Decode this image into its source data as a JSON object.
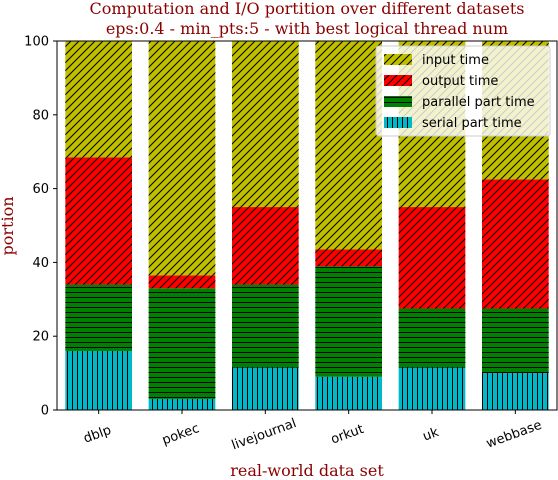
{
  "chart_data": {
    "type": "bar",
    "stacked": true,
    "title": "Computation and I/O portition over different datasets",
    "subtitle": "eps:0.4 - min_pts:5 - with best logical thread num",
    "xlabel": "real-world data set",
    "ylabel": "portion",
    "ylim": [
      0,
      100
    ],
    "yticks": [
      "0",
      "20",
      "40",
      "60",
      "80",
      "100"
    ],
    "categories": [
      "dblp",
      "pokec",
      "livejournal",
      "orkut",
      "uk",
      "webbase"
    ],
    "legend_position": "top-right",
    "series": [
      {
        "name": "serial part time",
        "color": "#00b8c8",
        "hatch": "vertical",
        "values": [
          16.0,
          3.0,
          11.5,
          9.0,
          11.5,
          10.0
        ]
      },
      {
        "name": "parallel part time",
        "color": "#008000",
        "hatch": "horizontal",
        "values": [
          18.0,
          30.0,
          22.5,
          30.0,
          16.0,
          17.5
        ]
      },
      {
        "name": "output time",
        "color": "#ff0000",
        "hatch": "diagonal",
        "values": [
          34.5,
          3.5,
          21.0,
          4.5,
          27.5,
          35.0
        ]
      },
      {
        "name": "input time",
        "color": "#bfbf00",
        "hatch": "diagonal",
        "values": [
          31.5,
          63.5,
          45.0,
          56.5,
          45.0,
          37.5
        ]
      }
    ],
    "legend_order": [
      "input time",
      "output time",
      "parallel part time",
      "serial part time"
    ]
  }
}
